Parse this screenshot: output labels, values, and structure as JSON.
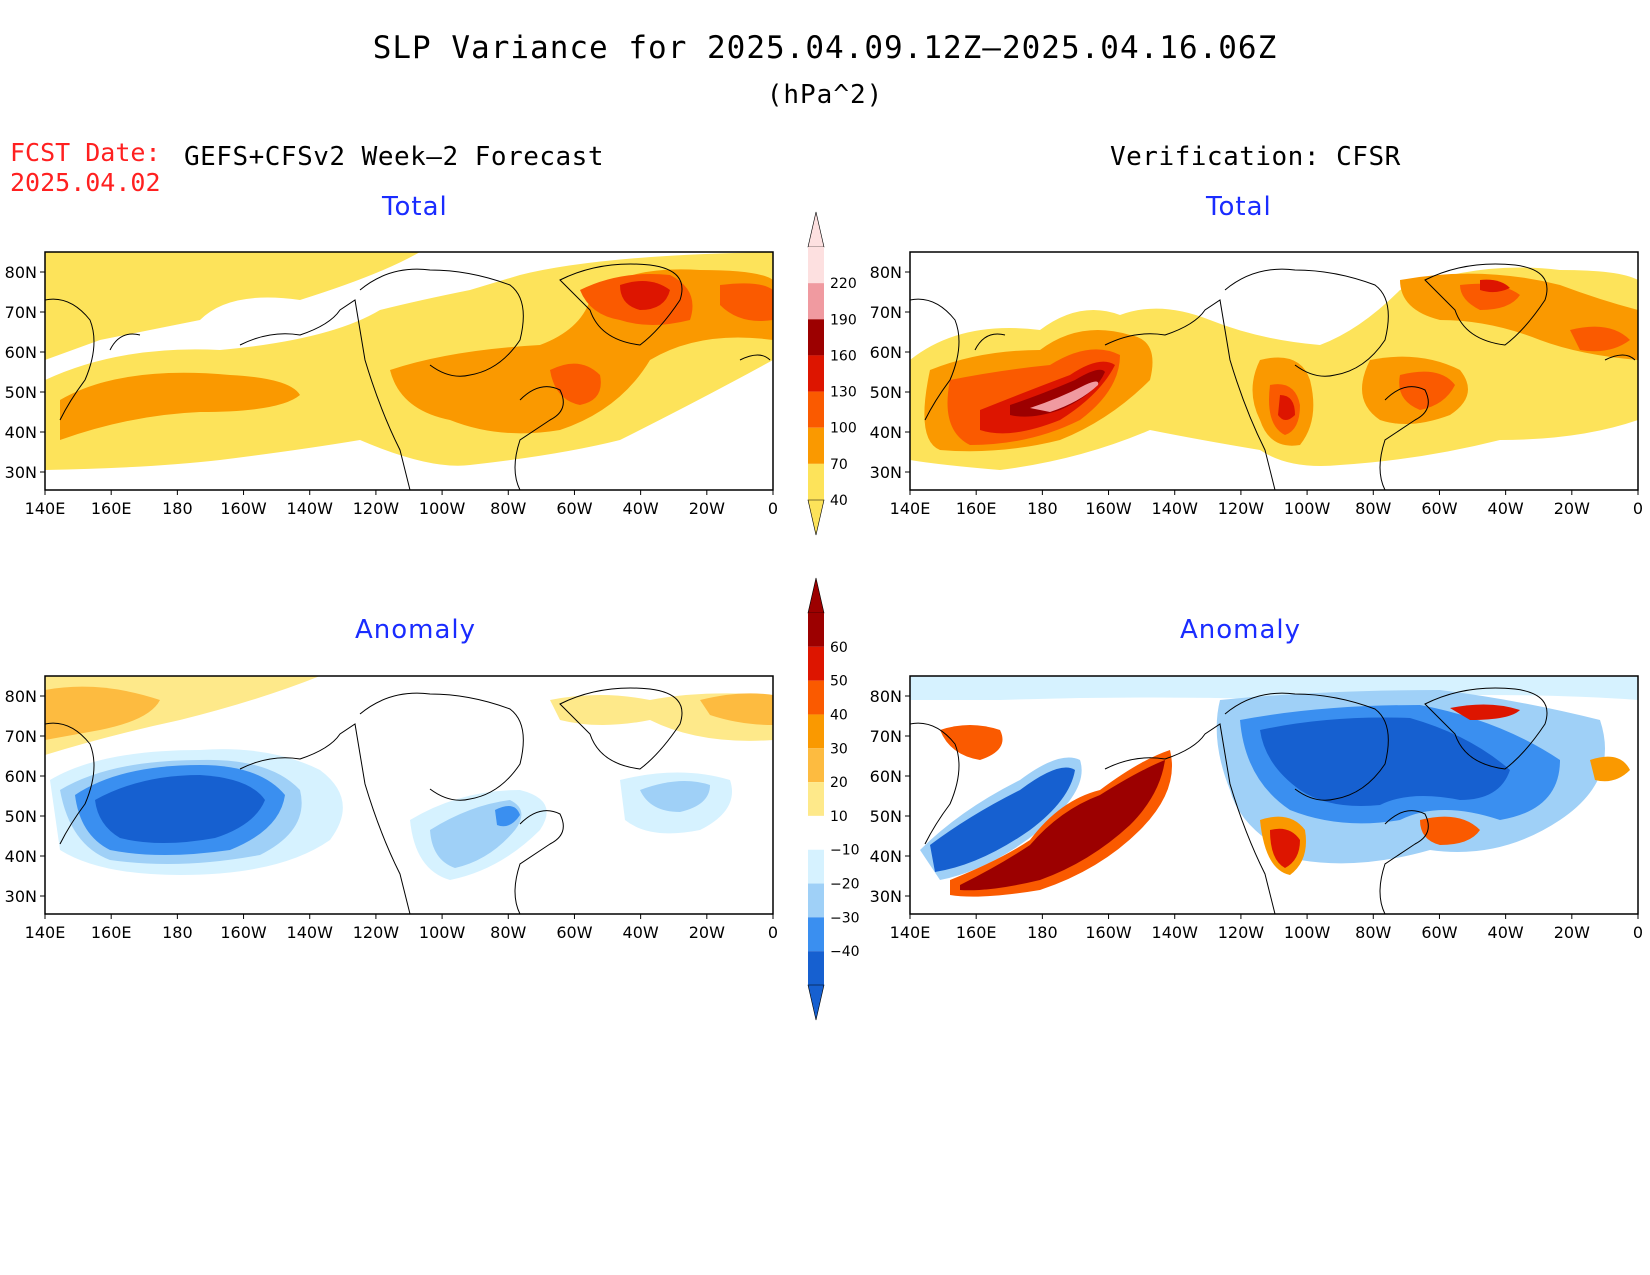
{
  "title": "SLP Variance for 2025.04.09.12Z–2025.04.16.06Z",
  "units": "(hPa^2)",
  "fcst_label": "FCST Date:",
  "fcst_date": "2025.04.02",
  "left_header": "GEFS+CFSv2 Week–2 Forecast",
  "right_header": "Verification: CFSR",
  "panels": {
    "fcst_total": {
      "subtitle": "Total"
    },
    "verif_total": {
      "subtitle": "Total"
    },
    "fcst_anom": {
      "subtitle": "Anomaly"
    },
    "verif_anom": {
      "subtitle": "Anomaly"
    }
  },
  "axes": {
    "lat_labels": [
      "80N",
      "70N",
      "60N",
      "50N",
      "40N",
      "30N"
    ],
    "lon_labels": [
      "140E",
      "160E",
      "180",
      "160W",
      "140W",
      "120W",
      "100W",
      "80W",
      "60W",
      "40W",
      "20W",
      "0"
    ]
  },
  "colorbar_total": {
    "labels": [
      "220",
      "190",
      "160",
      "130",
      "100",
      "70",
      "40"
    ],
    "colors": [
      "#fde0e0",
      "#f09aa0",
      "#9c0000",
      "#dd1500",
      "#fa5a00",
      "#fa9900",
      "#fde35a"
    ]
  },
  "colorbar_anom": {
    "labels": [
      "60",
      "50",
      "40",
      "30",
      "20",
      "10",
      "−10",
      "−20",
      "−30",
      "−40"
    ],
    "colors": [
      "#9c0000",
      "#dd1500",
      "#fa5a00",
      "#fa9900",
      "#fdbb40",
      "#fee98a",
      "#ffffff",
      "#d6f2ff",
      "#9fd0f7",
      "#3a8ff0",
      "#1660d0"
    ]
  }
}
